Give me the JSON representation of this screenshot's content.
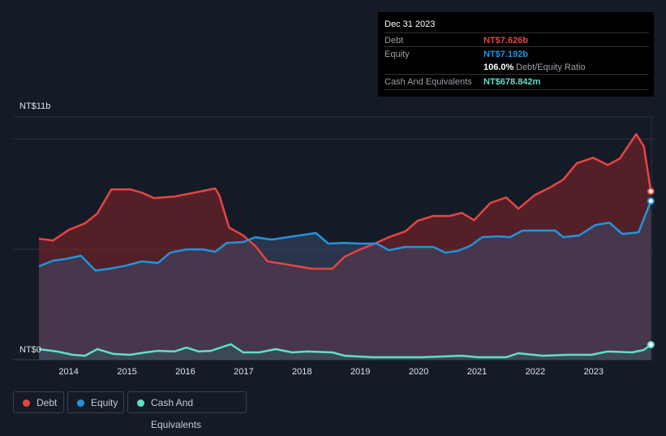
{
  "tooltip": {
    "date": "Dec 31 2023",
    "debt_label": "Debt",
    "debt_value": "NT$7.626b",
    "equity_label": "Equity",
    "equity_value": "NT$7.192b",
    "ratio_value": "106.0%",
    "ratio_label": "Debt/Equity Ratio",
    "cash_label": "Cash And Equivalents",
    "cash_value": "NT$678.842m"
  },
  "legend": [
    {
      "label": "Debt"
    },
    {
      "label": "Equity"
    },
    {
      "label": "Cash And Equivalents"
    }
  ],
  "chart_data": {
    "type": "area",
    "ylabel_top": "NT$11b",
    "ylabel_bottom": "NT$0",
    "ylim": [
      0,
      11
    ],
    "xlim": [
      2013.49,
      2023.99
    ],
    "x_ticks": [
      "2014",
      "2015",
      "2016",
      "2017",
      "2018",
      "2019",
      "2020",
      "2021",
      "2022",
      "2023"
    ],
    "colors": {
      "debt": "#e64545",
      "equity": "#2394df",
      "cash": "#5ee0c8"
    },
    "series": [
      {
        "name": "Debt",
        "key": "debt",
        "points": [
          [
            2013.49,
            5.48
          ],
          [
            2013.73,
            5.4
          ],
          [
            2014.0,
            5.88
          ],
          [
            2014.28,
            6.18
          ],
          [
            2014.49,
            6.62
          ],
          [
            2014.73,
            7.72
          ],
          [
            2015.05,
            7.72
          ],
          [
            2015.25,
            7.57
          ],
          [
            2015.46,
            7.32
          ],
          [
            2015.81,
            7.39
          ],
          [
            2016.16,
            7.57
          ],
          [
            2016.51,
            7.76
          ],
          [
            2016.58,
            7.46
          ],
          [
            2016.75,
            5.99
          ],
          [
            2016.99,
            5.63
          ],
          [
            2017.2,
            5.15
          ],
          [
            2017.41,
            4.45
          ],
          [
            2017.68,
            4.34
          ],
          [
            2018.17,
            4.12
          ],
          [
            2018.52,
            4.12
          ],
          [
            2018.73,
            4.67
          ],
          [
            2019.0,
            5.0
          ],
          [
            2019.21,
            5.22
          ],
          [
            2019.49,
            5.55
          ],
          [
            2019.77,
            5.81
          ],
          [
            2019.98,
            6.29
          ],
          [
            2020.25,
            6.51
          ],
          [
            2020.53,
            6.51
          ],
          [
            2020.74,
            6.65
          ],
          [
            2020.95,
            6.32
          ],
          [
            2021.23,
            7.1
          ],
          [
            2021.5,
            7.35
          ],
          [
            2021.71,
            6.84
          ],
          [
            2021.99,
            7.46
          ],
          [
            2022.27,
            7.83
          ],
          [
            2022.48,
            8.16
          ],
          [
            2022.71,
            8.9
          ],
          [
            2022.99,
            9.15
          ],
          [
            2023.24,
            8.82
          ],
          [
            2023.45,
            9.12
          ],
          [
            2023.73,
            10.22
          ],
          [
            2023.86,
            9.67
          ],
          [
            2023.98,
            7.63
          ]
        ]
      },
      {
        "name": "Equity",
        "key": "equity",
        "points": [
          [
            2013.49,
            4.23
          ],
          [
            2013.73,
            4.49
          ],
          [
            2013.93,
            4.56
          ],
          [
            2014.21,
            4.71
          ],
          [
            2014.46,
            4.04
          ],
          [
            2014.7,
            4.12
          ],
          [
            2014.98,
            4.26
          ],
          [
            2015.25,
            4.45
          ],
          [
            2015.53,
            4.38
          ],
          [
            2015.74,
            4.85
          ],
          [
            2016.02,
            5.0
          ],
          [
            2016.3,
            5.0
          ],
          [
            2016.51,
            4.89
          ],
          [
            2016.71,
            5.29
          ],
          [
            2016.99,
            5.33
          ],
          [
            2017.2,
            5.55
          ],
          [
            2017.48,
            5.44
          ],
          [
            2017.75,
            5.55
          ],
          [
            2018.24,
            5.74
          ],
          [
            2018.45,
            5.26
          ],
          [
            2018.73,
            5.29
          ],
          [
            2019.0,
            5.26
          ],
          [
            2019.28,
            5.26
          ],
          [
            2019.49,
            4.96
          ],
          [
            2019.77,
            5.11
          ],
          [
            2020.25,
            5.11
          ],
          [
            2020.46,
            4.85
          ],
          [
            2020.67,
            4.93
          ],
          [
            2020.88,
            5.15
          ],
          [
            2021.09,
            5.55
          ],
          [
            2021.37,
            5.59
          ],
          [
            2021.57,
            5.55
          ],
          [
            2021.78,
            5.85
          ],
          [
            2022.34,
            5.85
          ],
          [
            2022.48,
            5.55
          ],
          [
            2022.75,
            5.63
          ],
          [
            2023.03,
            6.1
          ],
          [
            2023.27,
            6.21
          ],
          [
            2023.49,
            5.7
          ],
          [
            2023.77,
            5.77
          ],
          [
            2023.98,
            7.19
          ]
        ]
      },
      {
        "name": "Cash And Equivalents",
        "key": "cash",
        "points": [
          [
            2013.49,
            0.48
          ],
          [
            2013.8,
            0.37
          ],
          [
            2014.07,
            0.22
          ],
          [
            2014.28,
            0.18
          ],
          [
            2014.49,
            0.48
          ],
          [
            2014.77,
            0.26
          ],
          [
            2015.05,
            0.22
          ],
          [
            2015.32,
            0.33
          ],
          [
            2015.53,
            0.4
          ],
          [
            2015.81,
            0.37
          ],
          [
            2016.02,
            0.55
          ],
          [
            2016.23,
            0.37
          ],
          [
            2016.44,
            0.4
          ],
          [
            2016.65,
            0.59
          ],
          [
            2016.78,
            0.7
          ],
          [
            2016.99,
            0.33
          ],
          [
            2017.27,
            0.33
          ],
          [
            2017.55,
            0.48
          ],
          [
            2017.83,
            0.33
          ],
          [
            2018.1,
            0.37
          ],
          [
            2018.52,
            0.33
          ],
          [
            2018.73,
            0.18
          ],
          [
            2019.21,
            0.11
          ],
          [
            2020.05,
            0.11
          ],
          [
            2020.74,
            0.18
          ],
          [
            2021.02,
            0.11
          ],
          [
            2021.5,
            0.11
          ],
          [
            2021.71,
            0.29
          ],
          [
            2022.13,
            0.18
          ],
          [
            2022.55,
            0.22
          ],
          [
            2022.96,
            0.22
          ],
          [
            2023.24,
            0.37
          ],
          [
            2023.66,
            0.33
          ],
          [
            2023.86,
            0.44
          ],
          [
            2023.98,
            0.68
          ]
        ]
      }
    ]
  }
}
